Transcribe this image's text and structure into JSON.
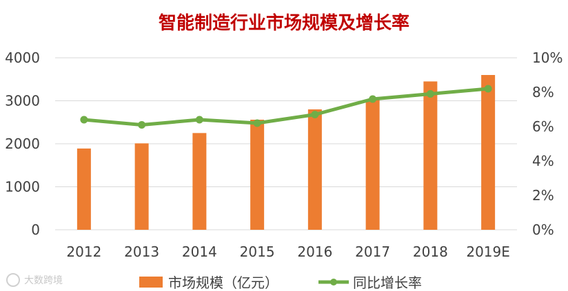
{
  "colors": {
    "title": "#C00000",
    "bar": "#ED7D31",
    "line": "#70AD47",
    "grid": "#D9D9D9",
    "axis_text": "#404040"
  },
  "chart_data": {
    "type": "bar",
    "title": "智能制造行业市场规模及增长率",
    "categories": [
      "2012",
      "2013",
      "2014",
      "2015",
      "2016",
      "2017",
      "2018",
      "2019E"
    ],
    "series": [
      {
        "name": "市场规模（亿元）",
        "type": "bar",
        "axis": "left",
        "values": [
          1890,
          2010,
          2250,
          2560,
          2800,
          3030,
          3450,
          3600
        ]
      },
      {
        "name": "同比增长率",
        "type": "line",
        "axis": "right",
        "values": [
          6.4,
          6.1,
          6.4,
          6.2,
          6.7,
          7.6,
          7.9,
          8.2
        ]
      }
    ],
    "y_left": {
      "ylim": [
        0,
        4000
      ],
      "ticks": [
        0,
        1000,
        2000,
        3000,
        4000
      ],
      "tick_labels": [
        "0",
        "1000",
        "2000",
        "3000",
        "4000"
      ]
    },
    "y_right": {
      "ylim": [
        0,
        10
      ],
      "ticks": [
        0,
        2,
        4,
        6,
        8,
        10
      ],
      "tick_labels": [
        "0%",
        "2%",
        "4%",
        "6%",
        "8%",
        "10%"
      ]
    },
    "grid": true,
    "legend": "bottom"
  },
  "watermark": {
    "text": "大数跨境"
  }
}
